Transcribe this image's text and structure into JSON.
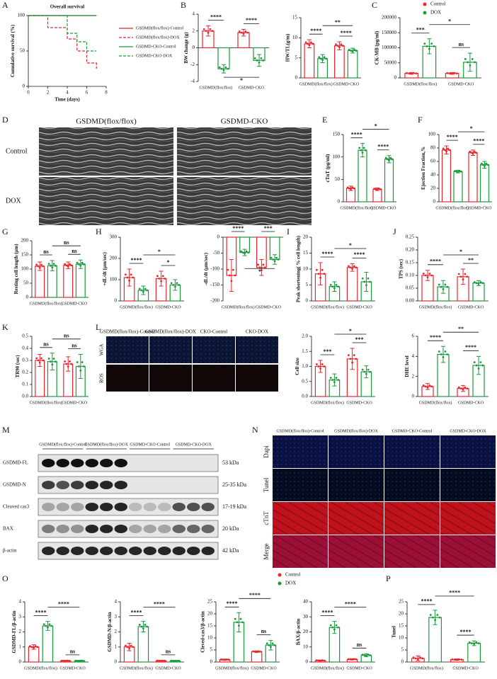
{
  "chart_data": [
    {
      "type": "line",
      "panel": "A",
      "title": "Overall survival",
      "xlabel": "Time (days)",
      "ylabel": "Cumulative survival (%)",
      "xlim": [
        0,
        8
      ],
      "xticks": [
        0,
        2,
        4,
        6,
        8
      ],
      "ylim": [
        0,
        100
      ],
      "yticks": [
        0,
        50,
        100
      ],
      "series": [
        {
          "name": "GSDMD(flox/flox)-Control",
          "color": "#e8262b",
          "dashed": false,
          "x": [
            0,
            7
          ],
          "values": [
            100,
            100
          ]
        },
        {
          "name": "GSDMD(flox/flox)-DOX",
          "color": "#e8262b",
          "dashed": true,
          "x": [
            0,
            2,
            4,
            5,
            6,
            7
          ],
          "values": [
            100,
            83,
            67,
            50,
            33,
            25
          ]
        },
        {
          "name": "GSDMD-CKO-Control",
          "color": "#1a9a3c",
          "dashed": false,
          "x": [
            0,
            7
          ],
          "values": [
            100,
            100
          ]
        },
        {
          "name": "GSDMD-CKO-DOX",
          "color": "#1a9a3c",
          "dashed": true,
          "x": [
            0,
            4,
            5,
            6,
            7
          ],
          "values": [
            100,
            75,
            63,
            50,
            50
          ]
        }
      ]
    },
    {
      "type": "bar",
      "panel": "B",
      "ylabel": "BW change (g)",
      "categories": [
        "GSDMD(flox/flox)",
        "GSDMD-CKO"
      ],
      "ylim": [
        -4,
        4
      ],
      "yticks": [
        -4,
        -2,
        0,
        2,
        4
      ],
      "significance": [
        "****",
        "****",
        "*"
      ],
      "series": [
        {
          "name": "Control",
          "color": "#e8262b",
          "values": [
            2.0,
            1.8
          ],
          "errors": [
            0.6,
            0.4
          ]
        },
        {
          "name": "DOX",
          "color": "#1a9a3c",
          "values": [
            -2.5,
            -1.5
          ],
          "errors": [
            0.5,
            0.7
          ]
        }
      ]
    },
    {
      "type": "bar",
      "ylabel": "HW/TL(g/m)",
      "categories": [
        "GSDMD(flox/flox)",
        "GSDMD-CKO"
      ],
      "ylim": [
        0,
        15
      ],
      "yticks": [
        0,
        5,
        10,
        15
      ],
      "significance": [
        "****",
        "****",
        "**"
      ],
      "series": [
        {
          "name": "Control",
          "color": "#e8262b",
          "values": [
            8.5,
            8.0
          ],
          "errors": [
            1.0,
            1.0
          ]
        },
        {
          "name": "DOX",
          "color": "#1a9a3c",
          "values": [
            4.8,
            6.8
          ],
          "errors": [
            1.0,
            0.6
          ]
        }
      ]
    },
    {
      "type": "bar",
      "panel": "C",
      "ylabel": "CK-MB (pg/ml)",
      "categories": [
        "GSDMD(flox/flox)",
        "GSDMD-CKO"
      ],
      "legend": "top-right",
      "ylim": [
        0,
        200000
      ],
      "yticks": [
        0,
        50000,
        100000,
        150000,
        200000
      ],
      "significance": [
        "***",
        "ns",
        "*"
      ],
      "series": [
        {
          "name": "Control",
          "color": "#e8262b",
          "values": [
            15000,
            15000
          ],
          "errors": [
            3000,
            3000
          ]
        },
        {
          "name": "DOX",
          "color": "#1a9a3c",
          "values": [
            105000,
            52000
          ],
          "errors": [
            25000,
            30000
          ]
        }
      ]
    },
    {
      "type": "bar",
      "panel": "E",
      "ylabel": "cTnT (pg/ml)",
      "categories": [
        "GSDMD(flox/flox)",
        "GSDMD-CKO"
      ],
      "ylim": [
        0,
        150
      ],
      "yticks": [
        0,
        50,
        100,
        150
      ],
      "significance": [
        "****",
        "****",
        "*"
      ],
      "series": [
        {
          "name": "Control",
          "color": "#e8262b",
          "values": [
            30,
            28
          ],
          "errors": [
            5,
            3
          ]
        },
        {
          "name": "DOX",
          "color": "#1a9a3c",
          "values": [
            115,
            95
          ],
          "errors": [
            15,
            8
          ]
        }
      ]
    },
    {
      "type": "bar",
      "panel": "F",
      "ylabel": "Ejection Fraction,%",
      "categories": [
        "GSDMD(flox/flox)",
        "GSDMD-CKO"
      ],
      "ylim": [
        0,
        100
      ],
      "yticks": [
        0,
        20,
        40,
        60,
        80,
        100
      ],
      "significance": [
        "****",
        "****",
        "*"
      ],
      "series": [
        {
          "name": "Control",
          "color": "#e8262b",
          "values": [
            77,
            73
          ],
          "errors": [
            6,
            4
          ]
        },
        {
          "name": "DOX",
          "color": "#1a9a3c",
          "values": [
            45,
            55
          ],
          "errors": [
            2,
            5
          ]
        }
      ]
    },
    {
      "type": "bar",
      "panel": "G",
      "ylabel": "Resting cell length (μm)",
      "categories": [
        "GSDMD(flox/flox)",
        "GSDMD-CKO"
      ],
      "ylim": [
        0,
        200
      ],
      "yticks": [
        0,
        50,
        100,
        150,
        200
      ],
      "significance": [
        "ns",
        "ns",
        "ns"
      ],
      "series": [
        {
          "name": "Control",
          "color": "#e8262b",
          "values": [
            110,
            113
          ],
          "errors": [
            15,
            12
          ]
        },
        {
          "name": "DOX",
          "color": "#1a9a3c",
          "values": [
            112,
            117
          ],
          "errors": [
            18,
            15
          ]
        }
      ]
    },
    {
      "type": "bar",
      "panel": "H",
      "ylabel": "+dL/dt (μm/sec)",
      "categories": [
        "GSDMD(flox/flox)",
        "GSDMD-CKO"
      ],
      "ylim": [
        0,
        300
      ],
      "yticks": [
        0,
        100,
        200,
        300
      ],
      "significance": [
        "****",
        "*",
        "*"
      ],
      "series": [
        {
          "name": "Control",
          "color": "#e8262b",
          "values": [
            110,
            105
          ],
          "errors": [
            40,
            35
          ]
        },
        {
          "name": "DOX",
          "color": "#1a9a3c",
          "values": [
            50,
            75
          ],
          "errors": [
            20,
            25
          ]
        }
      ]
    },
    {
      "type": "bar",
      "ylabel": "-dL/dt (μm/sec)",
      "categories": [
        "GSDMD(flox/flox)",
        "GSDMD-CKO"
      ],
      "ylim": [
        -200,
        0
      ],
      "yticks": [
        -200,
        -150,
        -100,
        -50,
        0
      ],
      "significance": [
        "****",
        "***",
        "*"
      ],
      "series": [
        {
          "name": "Control",
          "color": "#e8262b",
          "values": [
            -120,
            -95
          ],
          "errors": [
            50,
            25
          ]
        },
        {
          "name": "DOX",
          "color": "#1a9a3c",
          "values": [
            -48,
            -70
          ],
          "errors": [
            10,
            15
          ]
        }
      ]
    },
    {
      "type": "bar",
      "panel": "I",
      "ylabel": "Peak shortening( % cell length)",
      "categories": [
        "GSDMD(flox/flox)",
        "GSDMD-CKO"
      ],
      "ylim": [
        0,
        20
      ],
      "yticks": [
        0,
        5,
        10,
        15,
        20
      ],
      "significance": [
        "****",
        "****",
        "*"
      ],
      "series": [
        {
          "name": "Control",
          "color": "#e8262b",
          "values": [
            8.5,
            10.5
          ],
          "errors": [
            3.5,
            1.2
          ]
        },
        {
          "name": "DOX",
          "color": "#1a9a3c",
          "values": [
            4.5,
            6
          ],
          "errors": [
            1.5,
            3
          ]
        }
      ]
    },
    {
      "type": "bar",
      "panel": "J",
      "ylabel": "TPS (sec)",
      "categories": [
        "GSDMD(flox/flox)",
        "GSDMD-CKO"
      ],
      "ylim": [
        0,
        0.25
      ],
      "yticks": [
        {
          "value": 0,
          "label": "0.00"
        },
        0.05,
        {
          "value": 0.1,
          "label": "0.10"
        },
        0.15,
        {
          "value": 0.2,
          "label": "0.20"
        },
        0.25
      ],
      "significance": [
        "****",
        "**",
        "*"
      ],
      "series": [
        {
          "name": "Control",
          "color": "#e8262b",
          "values": [
            0.1,
            0.095
          ],
          "errors": [
            0.02,
            0.03
          ]
        },
        {
          "name": "DOX",
          "color": "#1a9a3c",
          "values": [
            0.055,
            0.07
          ],
          "errors": [
            0.025,
            0.01
          ]
        }
      ]
    },
    {
      "type": "bar",
      "panel": "K",
      "ylabel": "TR90 (sec)",
      "categories": [
        "GSDMD(flox/flox)",
        "GSDMD-CKO"
      ],
      "ylim": [
        0,
        0.5
      ],
      "yticks": [
        {
          "value": 0,
          "label": "0.0"
        },
        0.1,
        0.2,
        0.3,
        0.4,
        0.5
      ],
      "significance": [
        "ns",
        "ns",
        "ns"
      ],
      "series": [
        {
          "name": "Control",
          "color": "#e8262b",
          "values": [
            0.3,
            0.27
          ],
          "errors": [
            0.05,
            0.06
          ]
        },
        {
          "name": "DOX",
          "color": "#1a9a3c",
          "values": [
            0.29,
            0.25
          ],
          "errors": [
            0.07,
            0.1
          ]
        }
      ]
    },
    {
      "type": "bar",
      "ylabel": "Cell size",
      "categories": [
        "GSDMD(flox/flox)",
        "GSDMD-CKO"
      ],
      "ylim": [
        0,
        2
      ],
      "yticks": [
        {
          "value": 0,
          "label": "0.0"
        },
        0.5,
        {
          "value": 1,
          "label": "1.0"
        },
        1.5,
        {
          "value": 2,
          "label": "2.0"
        }
      ],
      "significance": [
        "***",
        "***",
        "*"
      ],
      "series": [
        {
          "name": "Control",
          "color": "#e8262b",
          "values": [
            1.0,
            1.25
          ],
          "errors": [
            0.2,
            0.35
          ]
        },
        {
          "name": "DOX",
          "color": "#1a9a3c",
          "values": [
            0.55,
            0.82
          ],
          "errors": [
            0.2,
            0.2
          ]
        }
      ]
    },
    {
      "type": "bar",
      "ylabel": "DHE level",
      "categories": [
        "GSDMD(flox/flox)",
        "GSDMD-CKO"
      ],
      "ylim": [
        0,
        6
      ],
      "yticks": [
        0,
        2,
        4,
        6
      ],
      "significance": [
        "****",
        "****",
        "**"
      ],
      "series": [
        {
          "name": "Control",
          "color": "#e8262b",
          "values": [
            1.0,
            0.8
          ],
          "errors": [
            0.3,
            0.3
          ]
        },
        {
          "name": "DOX",
          "color": "#1a9a3c",
          "values": [
            4.2,
            3.1
          ],
          "errors": [
            0.8,
            0.9
          ]
        }
      ]
    },
    {
      "type": "bar",
      "panel": "O",
      "ylabel": "GSDMD-FL/β-actin",
      "categories": [
        "GSDMD(flox/flox)",
        "GSDMD-CKO"
      ],
      "legend": "top-right",
      "ylim": [
        0,
        4
      ],
      "yticks": [
        0,
        1,
        2,
        3,
        4
      ],
      "significance": [
        "****",
        "ns",
        "****"
      ],
      "series": [
        {
          "name": "Control",
          "color": "#e8262b",
          "values": [
            1.0,
            0.08
          ],
          "errors": [
            0.15,
            0.02
          ]
        },
        {
          "name": "DOX",
          "color": "#1a9a3c",
          "values": [
            2.4,
            0.08
          ],
          "errors": [
            0.3,
            0.02
          ]
        }
      ]
    },
    {
      "type": "bar",
      "ylabel": "GSDMD-N/β-actin",
      "categories": [
        "GSDMD(flox/flox)",
        "GSDMD-CKO"
      ],
      "ylim": [
        0,
        4
      ],
      "yticks": [
        0,
        1,
        2,
        3,
        4
      ],
      "significance": [
        "****",
        "ns",
        "****"
      ],
      "series": [
        {
          "name": "Control",
          "color": "#e8262b",
          "values": [
            1.0,
            0.08
          ],
          "errors": [
            0.25,
            0.02
          ]
        },
        {
          "name": "DOX",
          "color": "#1a9a3c",
          "values": [
            2.35,
            0.08
          ],
          "errors": [
            0.35,
            0.02
          ]
        }
      ]
    },
    {
      "type": "bar",
      "ylabel": "Cleved-cas3/β-actin",
      "categories": [
        "GSDMD(flox/flox)",
        "GSDMD-CKO"
      ],
      "ylim": [
        0,
        25
      ],
      "yticks": [
        0,
        5,
        10,
        15,
        20,
        25
      ],
      "significance": [
        "****",
        "ns",
        "****"
      ],
      "series": [
        {
          "name": "Control",
          "color": "#e8262b",
          "values": [
            1,
            4.3
          ],
          "errors": [
            0.2,
            0.3
          ]
        },
        {
          "name": "DOX",
          "color": "#1a9a3c",
          "values": [
            16.5,
            7
          ],
          "errors": [
            4,
            2
          ]
        }
      ]
    },
    {
      "type": "bar",
      "ylabel": "BAX/β-actin",
      "categories": [
        "GSDMD(flox/flox)",
        "GSDMD-CKO"
      ],
      "ylim": [
        0,
        40
      ],
      "yticks": [
        0,
        10,
        20,
        30,
        40
      ],
      "significance": [
        "****",
        "ns",
        "****"
      ],
      "series": [
        {
          "name": "Control",
          "color": "#e8262b",
          "values": [
            1,
            1.8
          ],
          "errors": [
            0.3,
            0.4
          ]
        },
        {
          "name": "DOX",
          "color": "#1a9a3c",
          "values": [
            23,
            4.5
          ],
          "errors": [
            4,
            1
          ]
        }
      ]
    },
    {
      "type": "bar",
      "panel": "P",
      "ylabel": "Tunel",
      "categories": [
        "GSDMD(flox/flox)",
        "GSDMD-CKO"
      ],
      "ylim": [
        0,
        25
      ],
      "yticks": [
        0,
        5,
        10,
        15,
        20,
        25
      ],
      "significance": [
        "****",
        "****",
        "****"
      ],
      "series": [
        {
          "name": "Control",
          "color": "#e8262b",
          "values": [
            1.5,
            1
          ],
          "errors": [
            1,
            0.3
          ]
        },
        {
          "name": "DOX",
          "color": "#1a9a3c",
          "values": [
            18.5,
            7.8
          ],
          "errors": [
            3,
            1
          ]
        }
      ]
    }
  ],
  "echo": {
    "panel": "D",
    "columns": [
      "GSDMD(flox/flox)",
      "GSDMD-CKO"
    ],
    "rows": [
      "Control",
      "DOX"
    ]
  },
  "staining_l": {
    "panel": "L",
    "columns": [
      "GSDMD(flox/flox)-Control",
      "GSDMD(flox/flox)-DOX",
      "CKO-Control",
      "CKO-DOX"
    ],
    "rows": [
      "WGA",
      "ROS"
    ]
  },
  "blot": {
    "panel": "M",
    "groups": [
      "GSDMD(flox/flox)-Control",
      "GSDMD(flox/flox)-DOX",
      "GSDMD-CKO-Control",
      "GSDMD-CKO-DOX"
    ],
    "rows": [
      "GSDMD-FL",
      "GSDMD-N",
      "Cleaved cas3",
      "BAX",
      "β-actin"
    ],
    "sizes": [
      "53 kDa",
      "25-35 kDa",
      "17-19 kDa",
      "20 kDa",
      "42 kDa"
    ]
  },
  "staining_n": {
    "panel": "N",
    "columns": [
      "GSDMD(flox/flox)-Control",
      "GSDMD(flox/flox)-DOX",
      "GSDMD-CKO-Control",
      "GSDMD-CKO-DOX"
    ],
    "rows": [
      "Dapi",
      "Tunel",
      "cTnT",
      "Merge"
    ]
  }
}
